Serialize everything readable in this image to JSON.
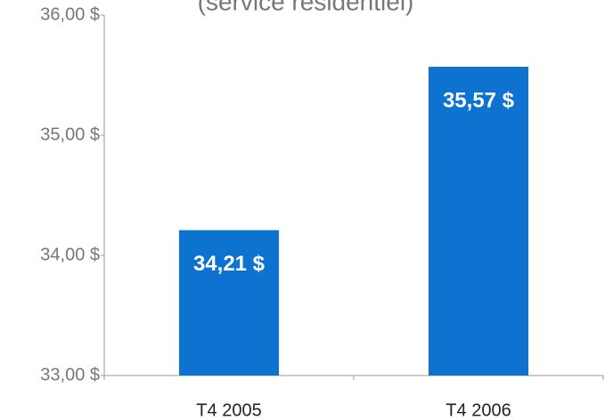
{
  "chart_data": {
    "type": "bar",
    "subtitle": "(service résidentiel)",
    "categories": [
      "T4 2005",
      "T4 2006"
    ],
    "values": [
      34.21,
      35.57
    ],
    "value_labels": [
      "34,21 $",
      "35,57 $"
    ],
    "color": "#0d72d0",
    "ylim": [
      33,
      36
    ],
    "yticks": [
      {
        "value": 33,
        "label": "33,00 $"
      },
      {
        "value": 34,
        "label": "34,00 $"
      },
      {
        "value": 35,
        "label": "35,00 $"
      },
      {
        "value": 36,
        "label": "36,00 $"
      }
    ]
  }
}
